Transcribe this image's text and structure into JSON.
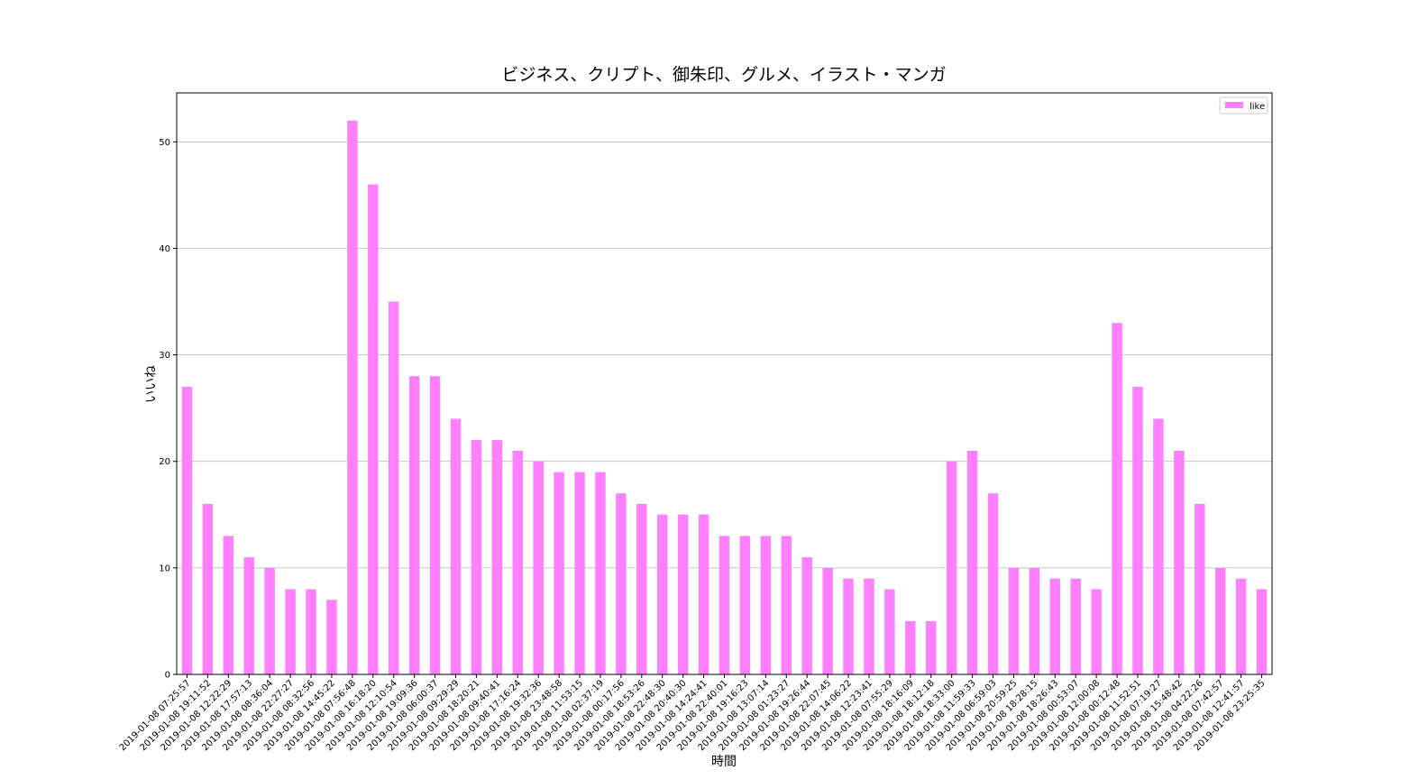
{
  "chart_data": {
    "type": "bar",
    "title": "ビジネス、クリプト、御朱印、グルメ、イラスト・マンガ",
    "x_label": "時間",
    "y_label": "いいね",
    "categories": [
      "2019-01-08 07:25:57",
      "2019-01-08 19:11:52",
      "2019-01-08 12:22:29",
      "2019-01-08 17:57:13",
      "2019-01-08 08:36:04",
      "2019-01-08 22:27:27",
      "2019-01-08 08:32:56",
      "2019-01-08 14:45:22",
      "2019-01-08 07:56:48",
      "2019-01-08 16:18:20",
      "2019-01-08 12:10:54",
      "2019-01-08 19:09:36",
      "2019-01-08 06:00:37",
      "2019-01-08 09:29:29",
      "2019-01-08 18:20:21",
      "2019-01-08 09:40:41",
      "2019-01-08 17:16:24",
      "2019-01-08 19:32:36",
      "2019-01-08 23:48:58",
      "2019-01-08 11:53:15",
      "2019-01-08 02:37:19",
      "2019-01-08 00:17:56",
      "2019-01-08 18:53:26",
      "2019-01-08 22:48:30",
      "2019-01-08 20:40:30",
      "2019-01-08 14:24:41",
      "2019-01-08 22:40:01",
      "2019-01-08 19:16:23",
      "2019-01-08 13:07:14",
      "2019-01-08 01:23:27",
      "2019-01-08 19:26:44",
      "2019-01-08 22:07:45",
      "2019-01-08 14:06:22",
      "2019-01-08 12:23:41",
      "2019-01-08 07:55:29",
      "2019-01-08 18:16:09",
      "2019-01-08 18:12:18",
      "2019-01-08 18:33:00",
      "2019-01-08 11:59:33",
      "2019-01-08 06:59:03",
      "2019-01-08 20:59:25",
      "2019-01-08 18:28:15",
      "2019-01-08 18:26:43",
      "2019-01-08 00:53:07",
      "2019-01-08 12:00:08",
      "2019-01-08 00:12:48",
      "2019-01-08 11:52:51",
      "2019-01-08 07:19:27",
      "2019-01-08 15:48:42",
      "2019-01-08 04:22:26",
      "2019-01-08 07:42:57",
      "2019-01-08 12:41:57",
      "2019-01-08 23:25:35"
    ],
    "series": [
      {
        "name": "like",
        "color": "#ff80ff",
        "values": [
          27,
          16,
          13,
          11,
          10,
          8,
          8,
          7,
          52,
          46,
          35,
          28,
          28,
          24,
          22,
          22,
          21,
          20,
          19,
          19,
          19,
          17,
          16,
          15,
          15,
          15,
          13,
          13,
          13,
          13,
          11,
          10,
          9,
          9,
          8,
          5,
          5,
          20,
          21,
          17,
          10,
          10,
          9,
          9,
          8,
          33,
          27,
          24,
          21,
          16,
          10,
          9,
          8
        ]
      }
    ],
    "ylim": [
      0,
      54.6
    ],
    "yticks": [
      0,
      10,
      20,
      30,
      40,
      50
    ],
    "grid": true,
    "legend": "upper right"
  }
}
